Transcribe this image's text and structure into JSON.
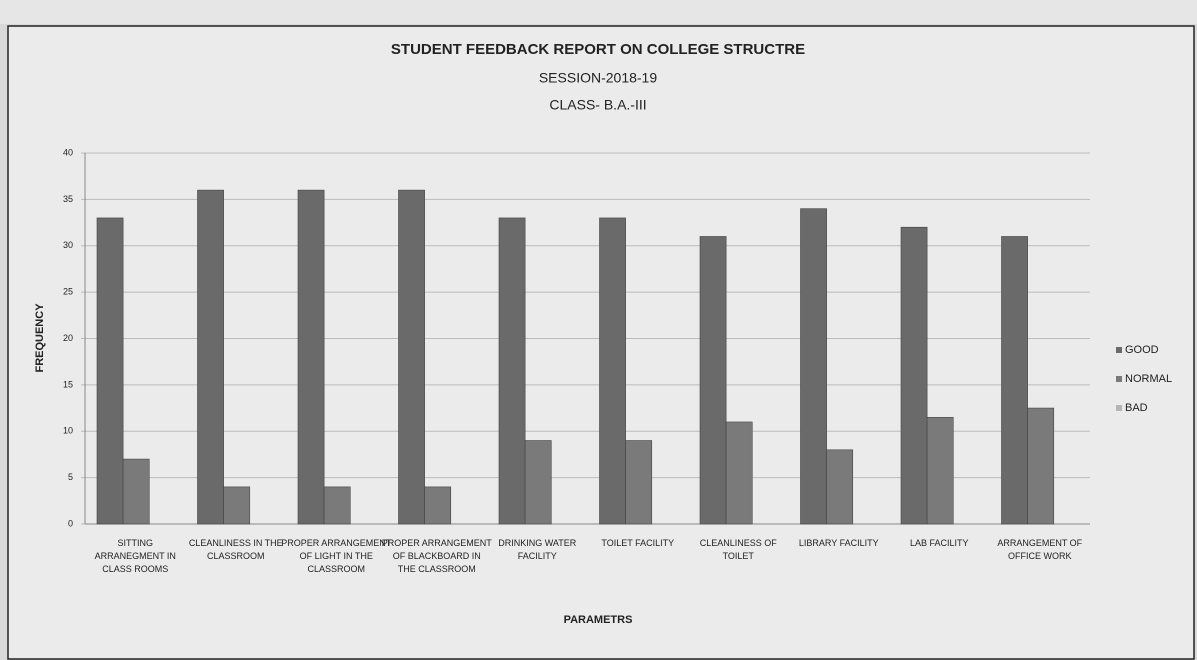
{
  "chart_data": {
    "type": "bar",
    "title": "STUDENT FEEDBACK REPORT ON COLLEGE STRUCTRE",
    "subtitles": [
      "SESSION-2018-19",
      "CLASS- B.A.-III"
    ],
    "x_label": "PARAMETRS",
    "y_label": "FREQUENCY",
    "categories": [
      "SITTING ARRANEGMENT IN CLASS ROOMS",
      "CLEANLINESS IN THE CLASSROOM",
      "PROPER ARRANGEMENT OF LIGHT IN THE CLASSROOM",
      "PROPER ARRANGEMENT OF BLACKBOARD IN THE CLASSROOM",
      "DRINKING WATER FACILITY",
      "TOILET FACILITY",
      "CLEANLINESS OF TOILET",
      "LIBRARY FACILITY",
      "LAB FACILITY",
      "ARRANGEMENT OF OFFICE WORK"
    ],
    "series": [
      {
        "name": "GOOD",
        "color": "#6a6a6a",
        "values": [
          33,
          36,
          36,
          36,
          33,
          33,
          31,
          34,
          32,
          31
        ]
      },
      {
        "name": "NORMAL",
        "color": "#7a7a7a",
        "values": [
          7,
          4,
          4,
          4,
          9,
          9,
          11,
          8,
          11.5,
          12.5
        ]
      },
      {
        "name": "BAD",
        "color": "#b5b5b5",
        "values": [
          0,
          0,
          0,
          0,
          0,
          0,
          0,
          0,
          0,
          0
        ]
      }
    ],
    "ylim": [
      0,
      40
    ],
    "yticks": [
      0,
      5,
      10,
      15,
      20,
      25,
      30,
      35,
      40
    ],
    "grid": true,
    "legend": "right"
  }
}
